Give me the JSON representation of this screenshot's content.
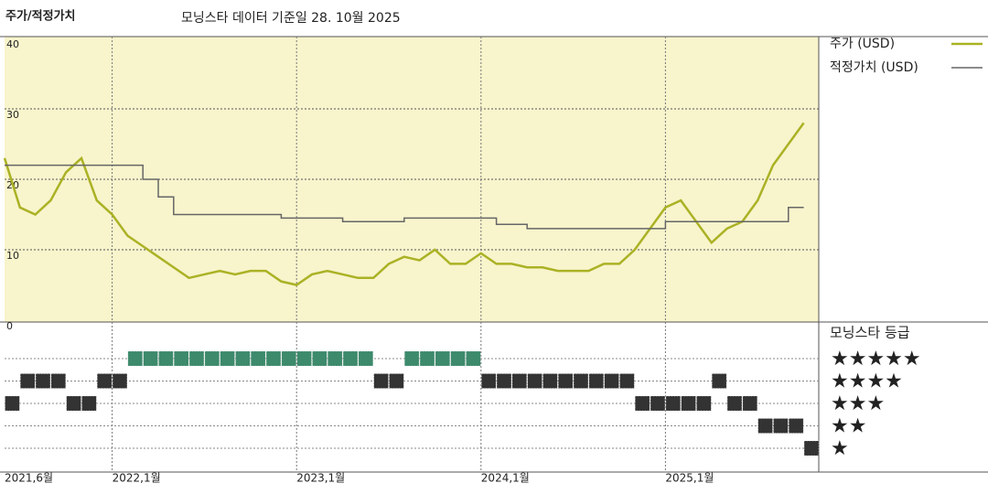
{
  "chart_data": [
    {
      "type": "line",
      "title": "주가/적정가치",
      "subtitle": "모닝스타 데이터 기준일 28. 10월 2025",
      "x": [
        "2021-06",
        "2021-07",
        "2021-08",
        "2021-09",
        "2021-10",
        "2021-11",
        "2021-12",
        "2022-01",
        "2022-02",
        "2022-03",
        "2022-04",
        "2022-05",
        "2022-06",
        "2022-07",
        "2022-08",
        "2022-09",
        "2022-10",
        "2022-11",
        "2022-12",
        "2023-01",
        "2023-02",
        "2023-03",
        "2023-04",
        "2023-05",
        "2023-06",
        "2023-07",
        "2023-08",
        "2023-09",
        "2023-10",
        "2023-11",
        "2023-12",
        "2024-01",
        "2024-02",
        "2024-03",
        "2024-04",
        "2024-05",
        "2024-06",
        "2024-07",
        "2024-08",
        "2024-09",
        "2024-10",
        "2024-11",
        "2024-12",
        "2025-01",
        "2025-02",
        "2025-03",
        "2025-04",
        "2025-05",
        "2025-06",
        "2025-07",
        "2025-08",
        "2025-09",
        "2025-10"
      ],
      "x_ticks": [
        {
          "value": "2021-06",
          "label": "2021,6월"
        },
        {
          "value": "2022-01",
          "label": "2022,1월"
        },
        {
          "value": "2023-01",
          "label": "2023,1월"
        },
        {
          "value": "2024-01",
          "label": "2024,1월"
        },
        {
          "value": "2025-01",
          "label": "2025,1월"
        }
      ],
      "series": [
        {
          "name": "주가 (USD)",
          "color": "#aab224",
          "values": [
            23,
            16,
            15,
            17,
            21,
            23,
            17,
            15,
            12,
            10.5,
            9,
            7.5,
            6,
            6.5,
            7,
            6.5,
            7,
            7,
            5.5,
            5,
            6.5,
            7,
            6.5,
            6,
            6,
            8,
            9,
            8.5,
            10,
            8,
            8,
            9.5,
            8,
            8,
            7.5,
            7.5,
            7,
            7,
            7,
            8,
            8,
            10,
            13,
            16,
            17,
            14,
            11,
            13,
            14,
            17,
            22,
            25,
            28
          ]
        },
        {
          "name": "적정가치 (USD)",
          "color": "#666666",
          "step": true,
          "values": [
            22,
            22,
            22,
            22,
            22,
            22,
            22,
            22,
            22,
            20,
            17.5,
            15,
            15,
            15,
            15,
            15,
            15,
            15,
            14.5,
            14.5,
            14.5,
            14.5,
            14,
            14,
            14,
            14,
            14.5,
            14.5,
            14.5,
            14.5,
            14.5,
            14.5,
            13.6,
            13.6,
            13,
            13,
            13,
            13,
            13,
            13,
            13,
            13,
            13,
            14,
            14,
            14,
            14,
            14,
            14,
            14,
            14,
            16,
            16
          ]
        }
      ],
      "ylim": [
        0,
        40
      ],
      "yticks": [
        0,
        10,
        20,
        30,
        40
      ],
      "grid": true
    },
    {
      "type": "rating",
      "title": "모닝스타 등급",
      "levels": [
        5,
        4,
        3,
        2,
        1
      ],
      "level_labels": [
        "★★★★★",
        "★★★★",
        "★★★",
        "★★",
        "★"
      ],
      "level_colors": [
        "#3d8a6c",
        "#333333",
        "#333333",
        "#333333",
        "#333333"
      ],
      "values": [
        3,
        4,
        4,
        4,
        3,
        3,
        4,
        4,
        5,
        5,
        5,
        5,
        5,
        5,
        5,
        5,
        5,
        5,
        5,
        5,
        5,
        5,
        5,
        5,
        4,
        4,
        5,
        5,
        5,
        5,
        5,
        4,
        4,
        4,
        4,
        4,
        4,
        4,
        4,
        4,
        4,
        3,
        3,
        3,
        3,
        3,
        4,
        3,
        3,
        2,
        2,
        2,
        1
      ]
    }
  ]
}
